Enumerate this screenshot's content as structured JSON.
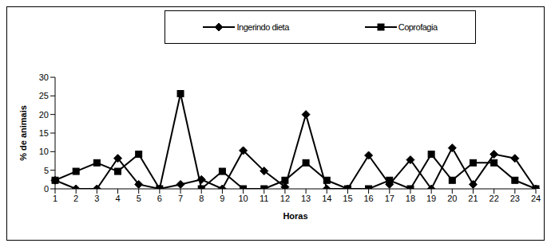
{
  "chart_data": {
    "type": "line",
    "x_label": "Horas",
    "y_label": "% de animais",
    "categories": [
      "1",
      "2",
      "3",
      "4",
      "5",
      "6",
      "7",
      "8",
      "9",
      "10",
      "11",
      "12",
      "13",
      "14",
      "15",
      "16",
      "17",
      "18",
      "19",
      "20",
      "21",
      "22",
      "23",
      "24"
    ],
    "series": [
      {
        "name": "Ingerindo dieta",
        "color": "#000000",
        "marker": "diamond",
        "values": [
          2.3,
          0,
          0,
          8.2,
          1.2,
          0,
          1.2,
          2.5,
          0,
          10.3,
          4.8,
          0.5,
          20,
          0,
          0,
          9,
          1.2,
          7.8,
          0,
          11,
          1.2,
          9.3,
          8.2,
          0
        ]
      },
      {
        "name": "Coprofagia",
        "color": "#000000",
        "marker": "square",
        "values": [
          2.3,
          4.7,
          7,
          4.7,
          9.3,
          0,
          25.6,
          0,
          4.7,
          0,
          0,
          2.3,
          7,
          2.3,
          0,
          0,
          2.3,
          0,
          9.3,
          2.3,
          7,
          7,
          2.3,
          0
        ]
      }
    ],
    "ylim": [
      0,
      30
    ],
    "yticks": [
      0,
      5,
      10,
      15,
      20,
      25,
      30
    ],
    "grid": false,
    "legend": "top"
  }
}
